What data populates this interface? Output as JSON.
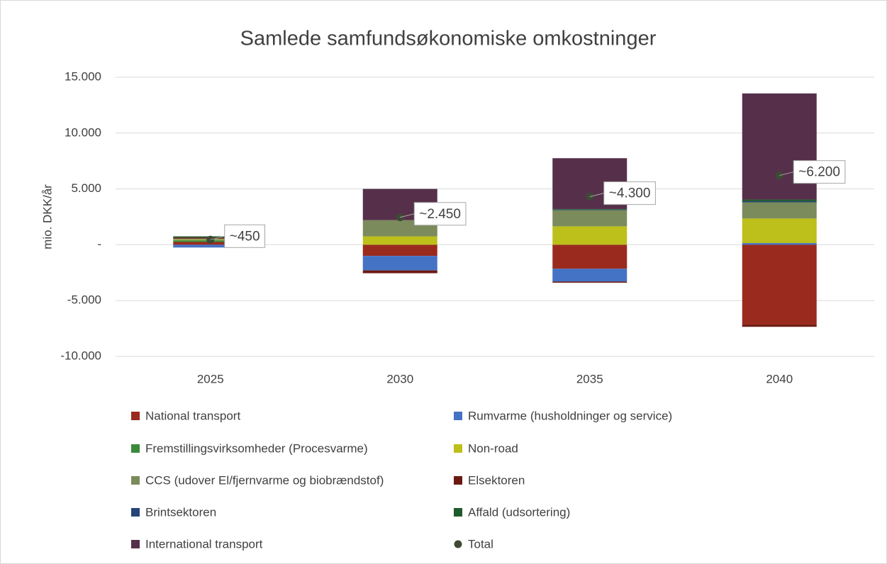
{
  "chart_data": {
    "type": "bar",
    "stacked": true,
    "title": "Samlede samfundsøkonomiske omkostninger",
    "y_label": "mio. DKK/år",
    "categories": [
      "2025",
      "2030",
      "2035",
      "2040"
    ],
    "ylim": [
      -10000,
      15000
    ],
    "yticks": [
      {
        "value": -10000,
        "label": "-10.000"
      },
      {
        "value": -5000,
        "label": "-5.000"
      },
      {
        "value": 0,
        "label": "-"
      },
      {
        "value": 5000,
        "label": "5.000"
      },
      {
        "value": 10000,
        "label": "10.000"
      },
      {
        "value": 15000,
        "label": "15.000"
      }
    ],
    "grid": true,
    "legend": "bottom",
    "series": [
      {
        "name": "National transport",
        "color": "#9b2a1e",
        "values": [
          250,
          -1000,
          -2150,
          -7150
        ]
      },
      {
        "name": "Rumvarme (husholdninger og service)",
        "color": "#4472c4",
        "values": [
          -250,
          -1300,
          -1150,
          150
        ]
      },
      {
        "name": "Fremstillingsvirksomheder (Procesvarme)",
        "color": "#3a8a3a",
        "values": [
          150,
          0,
          0,
          0
        ]
      },
      {
        "name": "Non-road",
        "color": "#bdbf1a",
        "values": [
          50,
          750,
          1650,
          2200
        ]
      },
      {
        "name": "CCS (udover El/fjernvarme og biobrændstof)",
        "color": "#7b8b5b",
        "values": [
          100,
          1450,
          1450,
          1450
        ]
      },
      {
        "name": "Elsektoren",
        "color": "#6b1a12",
        "values": [
          100,
          -250,
          -100,
          -200
        ]
      },
      {
        "name": "Brintsektoren",
        "color": "#264478",
        "values": [
          0,
          0,
          50,
          100
        ]
      },
      {
        "name": "Affald (udsortering)",
        "color": "#1f5a2a",
        "values": [
          100,
          0,
          50,
          150
        ]
      },
      {
        "name": "International transport",
        "color": "#56304a",
        "values": [
          0,
          2800,
          4550,
          9500
        ]
      },
      {
        "name": "Total",
        "color": "#3e4a36",
        "type": "scatter",
        "values": [
          450,
          2450,
          4300,
          6200
        ],
        "value_labels": [
          "~450",
          "~2.450",
          "~4.300",
          "~6.200"
        ]
      }
    ]
  }
}
